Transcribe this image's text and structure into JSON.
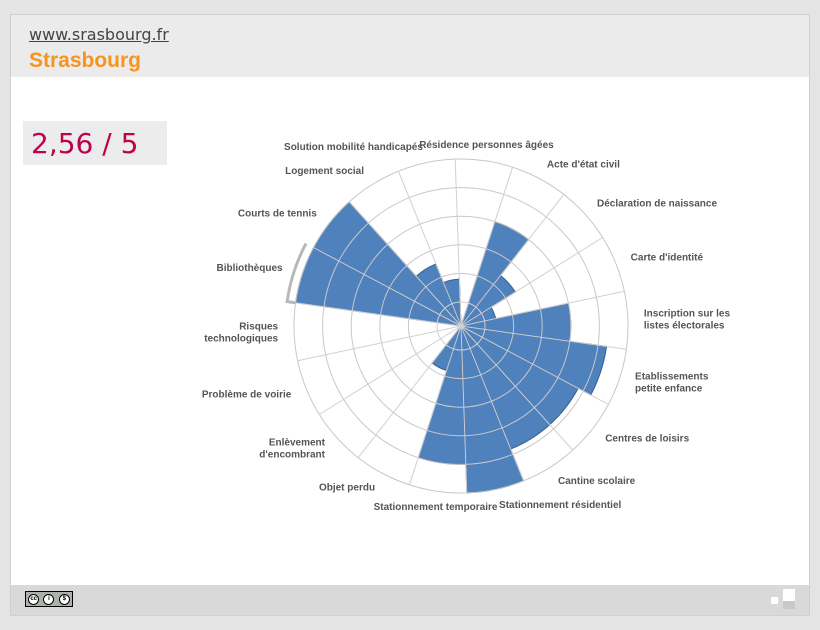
{
  "header": {
    "site": "www.srasbourg.fr",
    "city": "Strasbourg"
  },
  "score": "2,56 / 5",
  "colors": {
    "accent": "#f7941d",
    "score": "#c0004a",
    "bar": "#4f81bd",
    "bar_stroke": "#365f91"
  },
  "footer": {
    "license_icon": "cc-by-nc-icon"
  },
  "chart_data": {
    "type": "polar-area",
    "title": "",
    "scale_max": 5,
    "rings": [
      1,
      2,
      3,
      4,
      5
    ],
    "categories": [
      {
        "label": [
          "Résidence personnes âgées"
        ],
        "value": 0
      },
      {
        "label": [
          "Acte d'état civil"
        ],
        "value": 3.0
      },
      {
        "label": [
          "Déclaration de naissance"
        ],
        "value": 1.4
      },
      {
        "label": [
          "Carte d'identité"
        ],
        "value": 0.4
      },
      {
        "label": [
          "Inscription sur les",
          "listes électorales"
        ],
        "value": 3.0
      },
      {
        "label": [
          "Etablissements",
          "petite enfance"
        ],
        "value": 4.3
      },
      {
        "label": [
          "Centres de loisirs"
        ],
        "value": 3.8
      },
      {
        "label": [
          "Cantine scolaire"
        ],
        "value": 3.8
      },
      {
        "label": [
          "Stationnement résidentiel"
        ],
        "value": 5.0
      },
      {
        "label": [
          "Stationnement temporaire"
        ],
        "value": 4.0
      },
      {
        "label": [
          "Objet perdu"
        ],
        "value": 0.8
      },
      {
        "label": [
          "Enlèvement",
          "d'encombrant"
        ],
        "value": 0
      },
      {
        "label": [
          "Problème de voirie"
        ],
        "value": 0
      },
      {
        "label": [
          "Risques",
          "technologiques"
        ],
        "value": 0
      },
      {
        "label": [
          "Bibliothèques"
        ],
        "value": 5.3
      },
      {
        "label": [
          "Courts de tennis"
        ],
        "value": 5.0
      },
      {
        "label": [
          "Logement social"
        ],
        "value": 1.5
      },
      {
        "label": [
          "Solution mobilité handicapés"
        ],
        "value": 0.8
      }
    ]
  }
}
